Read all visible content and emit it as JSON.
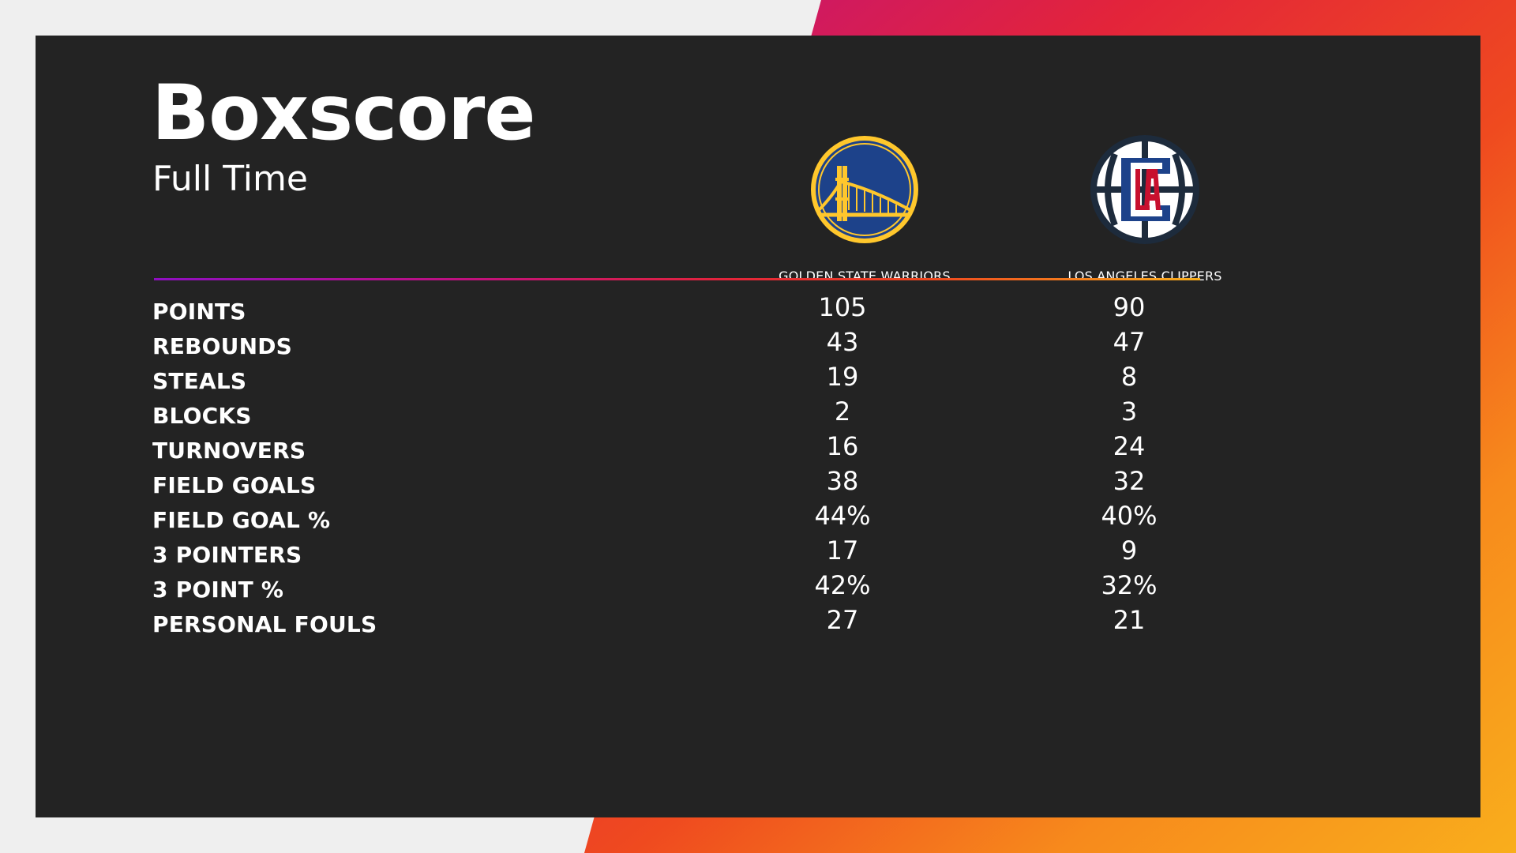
{
  "header": {
    "title": "Boxscore",
    "subtitle": "Full Time"
  },
  "teams": [
    {
      "name": "GOLDEN STATE WARRIORS",
      "logo_icon": "golden-state-warriors-logo"
    },
    {
      "name": "LOS ANGELES CLIPPERS",
      "logo_icon": "los-angeles-clippers-logo"
    }
  ],
  "stats": [
    {
      "label": "POINTS",
      "home": "105",
      "away": "90"
    },
    {
      "label": "REBOUNDS",
      "home": "43",
      "away": "47"
    },
    {
      "label": "STEALS",
      "home": "19",
      "away": "8"
    },
    {
      "label": "BLOCKS",
      "home": "2",
      "away": "3"
    },
    {
      "label": "TURNOVERS",
      "home": "16",
      "away": "24"
    },
    {
      "label": "FIELD GOALS",
      "home": "38",
      "away": "32"
    },
    {
      "label": "FIELD GOAL %",
      "home": "44%",
      "away": "40%"
    },
    {
      "label": "3 POINTERS",
      "home": "17",
      "away": "9"
    },
    {
      "label": "3 POINT %",
      "home": "42%",
      "away": "32%"
    },
    {
      "label": "PERSONAL FOULS",
      "home": "27",
      "away": "21"
    }
  ],
  "colors": {
    "panel": "#232323",
    "background": "#efefef",
    "accent_gradient": [
      "#8f0fc2",
      "#c0117e",
      "#e3243a",
      "#ef4a1f",
      "#f9ae1c"
    ],
    "warriors_blue": "#1d428a",
    "warriors_gold": "#ffc72c",
    "clippers_navy": "#1d2b3c",
    "clippers_red": "#c8102e",
    "clippers_blue": "#1d428a"
  }
}
